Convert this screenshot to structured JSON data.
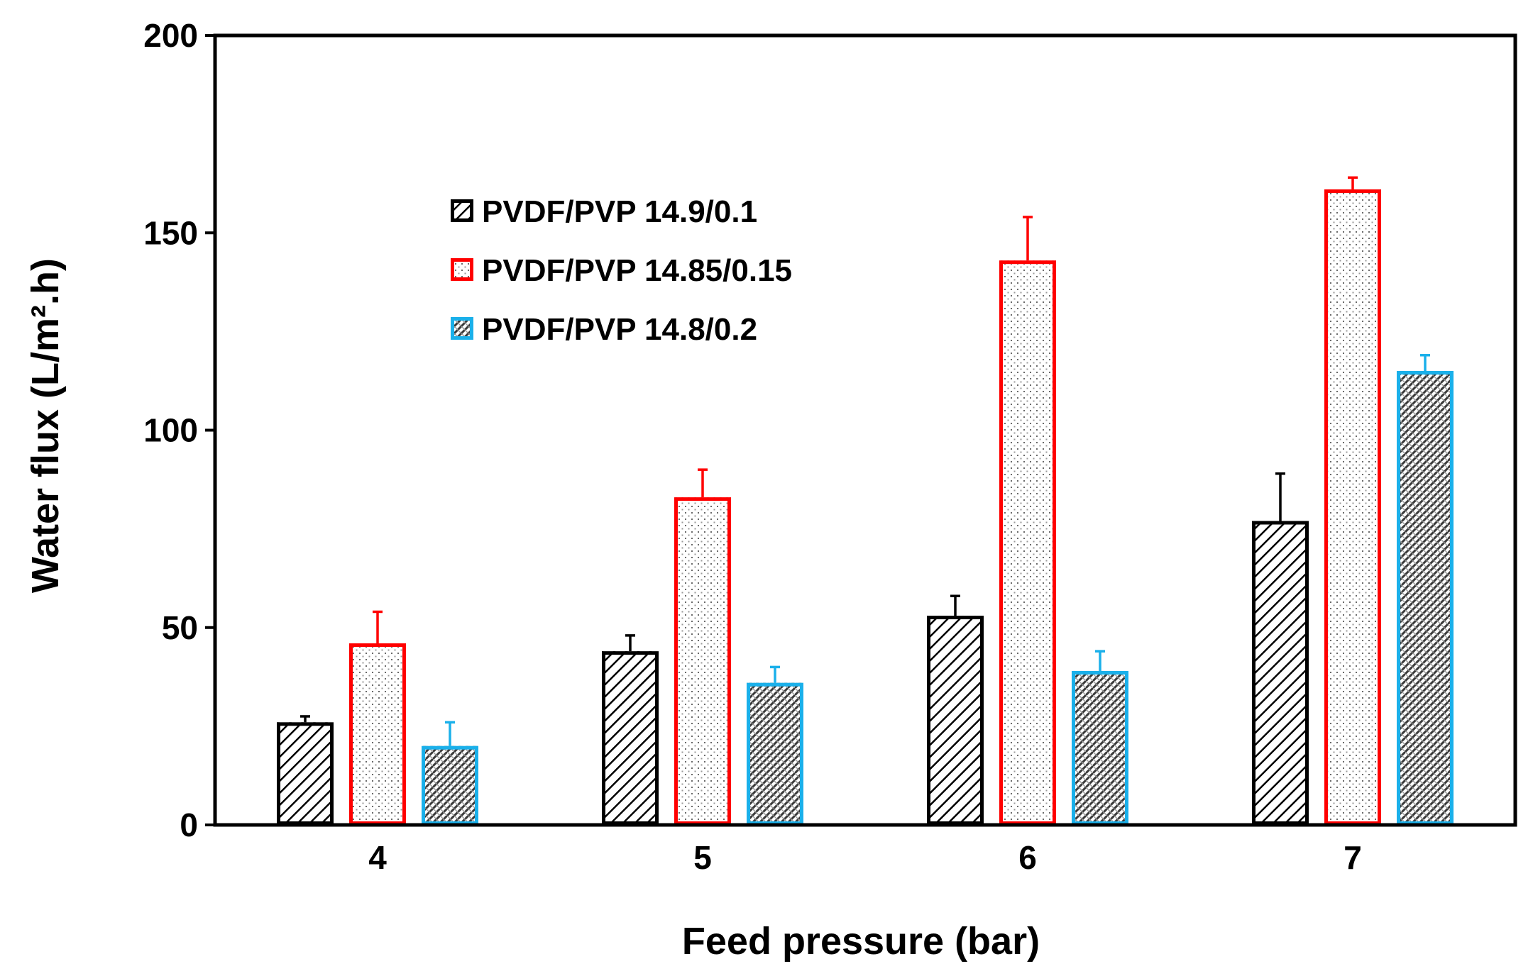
{
  "chart_data": {
    "type": "bar",
    "title": "",
    "xlabel": "Feed pressure (bar)",
    "ylabel": "Water flux (L/m².h)",
    "ylim": [
      0,
      200
    ],
    "yticks": [
      "0",
      "50",
      "100",
      "150",
      "200"
    ],
    "categories": [
      "4",
      "5",
      "6",
      "7"
    ],
    "legend_position": "upper-left",
    "series": [
      {
        "name": "PVDF/PVP 14.9/0.1",
        "edge_color": "#000000",
        "pattern": "dense diagonal hatch",
        "values": [
          26,
          44,
          53,
          77
        ],
        "errors": [
          1.5,
          4,
          5,
          12
        ]
      },
      {
        "name": "PVDF/PVP 14.85/0.15",
        "edge_color": "#ff0000",
        "pattern": "fine dots",
        "values": [
          46,
          83,
          143,
          161
        ],
        "errors": [
          8,
          7,
          11,
          3
        ]
      },
      {
        "name": "PVDF/PVP 14.8/0.2",
        "edge_color": "#1ab0ea",
        "pattern": "crosshatch",
        "values": [
          20,
          36,
          39,
          115
        ],
        "errors": [
          6,
          4,
          5,
          4
        ]
      }
    ]
  }
}
